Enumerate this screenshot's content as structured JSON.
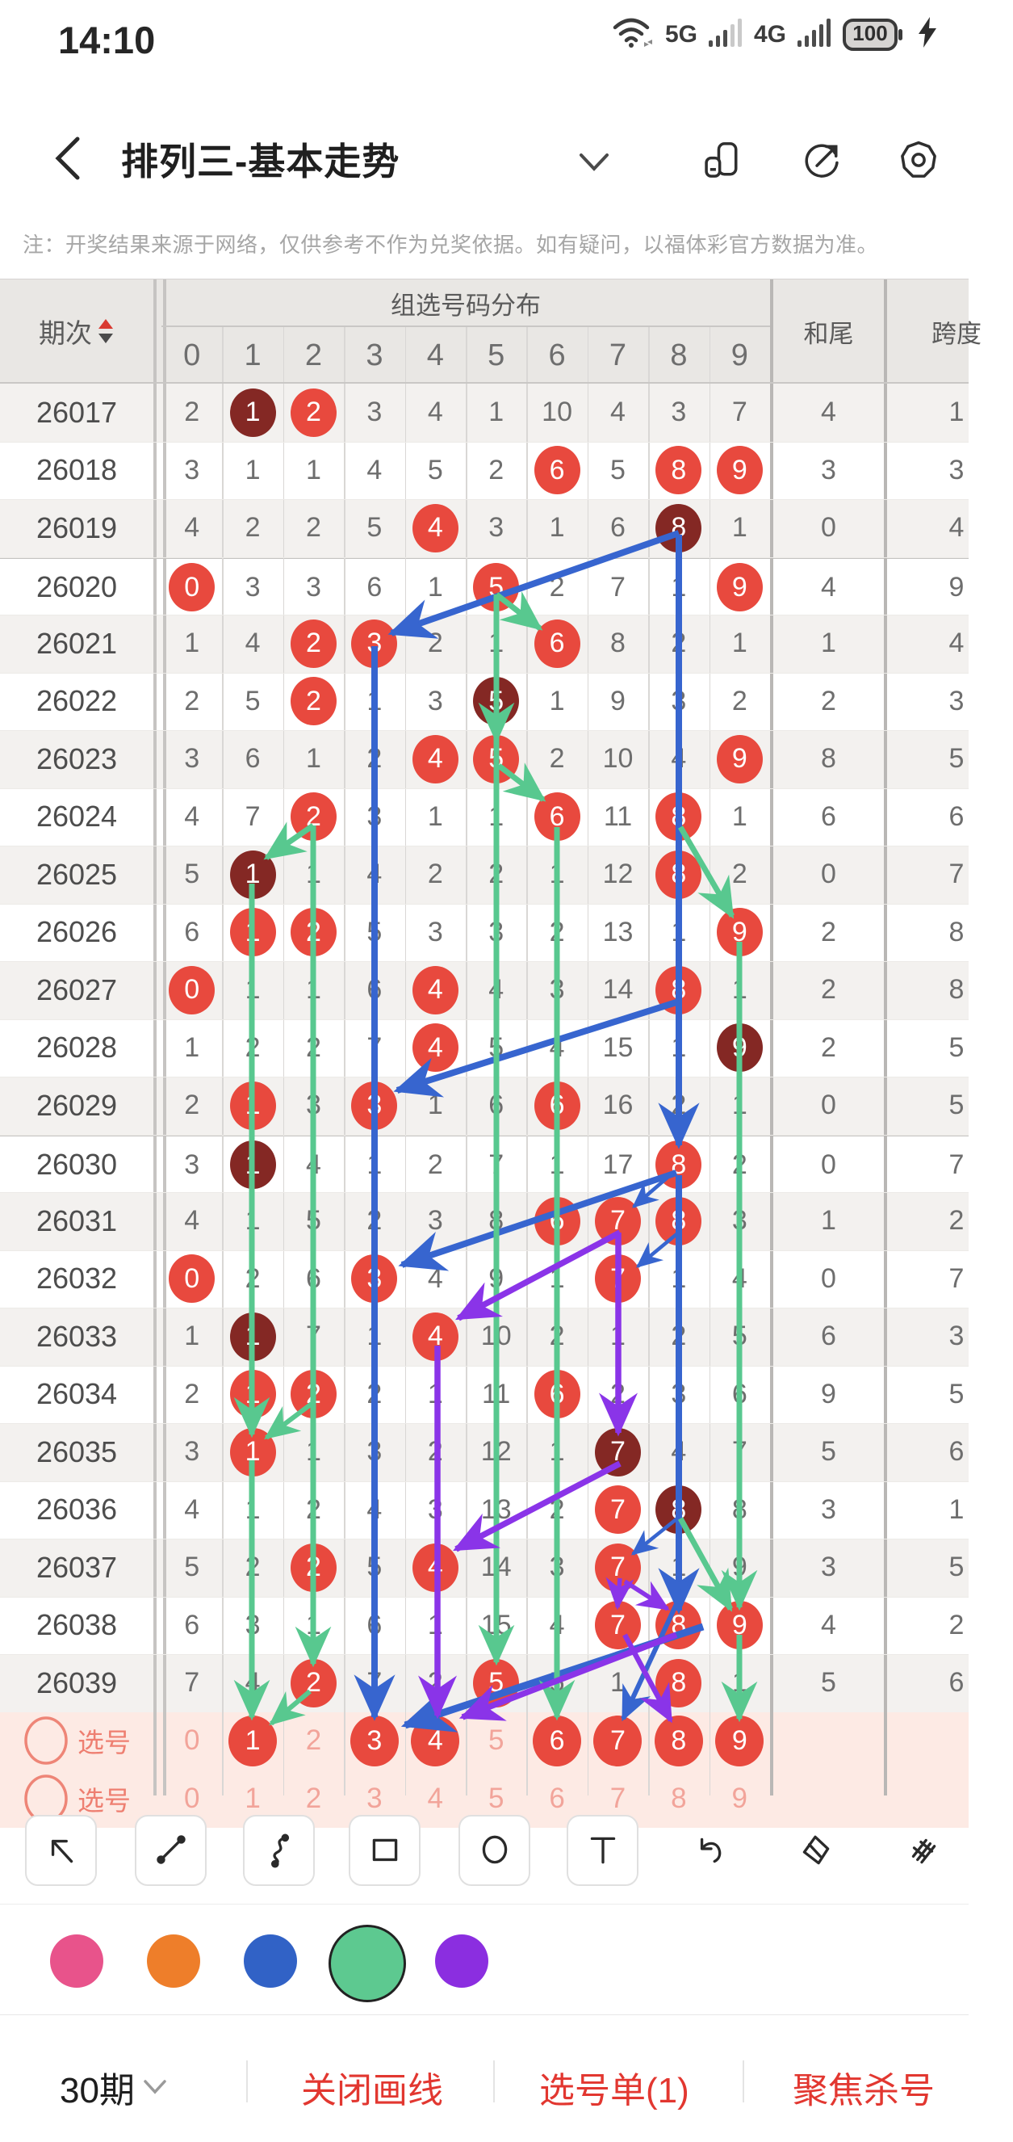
{
  "status_bar": {
    "time": "14:10",
    "net1": "5G",
    "net2": "4G",
    "battery": "100",
    "icons": [
      "wifi-icon",
      "signal-bars-icon",
      "signal-bars-icon",
      "battery-icon",
      "charging-bolt-icon"
    ]
  },
  "header": {
    "title": "排列三-基本走势",
    "icons": [
      "back-icon",
      "chevron-down-icon",
      "pages-icon",
      "share-icon",
      "badge-icon"
    ]
  },
  "notice": "注：开奖结果来源于网络，仅供参考不作为兑奖依据。如有疑问，以福体彩官方数据为准。",
  "table": {
    "period_header": "期次",
    "group_header": "组选号码分布",
    "sum_tail_header": "和尾",
    "span_header": "跨度",
    "digit_headers": [
      "0",
      "1",
      "2",
      "3",
      "4",
      "5",
      "6",
      "7",
      "8",
      "9"
    ],
    "rows": [
      {
        "period": "26017",
        "values": [
          "2",
          "1",
          "2",
          "3",
          "4",
          "1",
          "10",
          "4",
          "3",
          "7"
        ],
        "red": [
          2
        ],
        "dark": [
          1
        ],
        "sum_tail": "4",
        "span": "1"
      },
      {
        "period": "26018",
        "values": [
          "3",
          "1",
          "1",
          "4",
          "5",
          "2",
          "6",
          "5",
          "8",
          "9"
        ],
        "red": [
          6,
          8,
          9
        ],
        "dark": [],
        "sum_tail": "3",
        "span": "3"
      },
      {
        "period": "26019",
        "values": [
          "4",
          "2",
          "2",
          "5",
          "4",
          "3",
          "1",
          "6",
          "8",
          "1"
        ],
        "red": [
          4
        ],
        "dark": [
          8
        ],
        "sum_tail": "0",
        "span": "4"
      },
      {
        "period": "26020",
        "values": [
          "0",
          "3",
          "3",
          "6",
          "1",
          "5",
          "2",
          "7",
          "1",
          "9"
        ],
        "red": [
          0,
          5,
          9
        ],
        "dark": [],
        "sum_tail": "4",
        "span": "9"
      },
      {
        "period": "26021",
        "values": [
          "1",
          "4",
          "2",
          "3",
          "2",
          "1",
          "6",
          "8",
          "2",
          "1"
        ],
        "red": [
          2,
          3,
          6
        ],
        "dark": [],
        "sum_tail": "1",
        "span": "4"
      },
      {
        "period": "26022",
        "values": [
          "2",
          "5",
          "2",
          "1",
          "3",
          "5",
          "1",
          "9",
          "3",
          "2"
        ],
        "red": [
          2
        ],
        "dark": [
          5
        ],
        "sum_tail": "2",
        "span": "3"
      },
      {
        "period": "26023",
        "values": [
          "3",
          "6",
          "1",
          "2",
          "4",
          "5",
          "2",
          "10",
          "4",
          "9"
        ],
        "red": [
          4,
          5,
          9
        ],
        "dark": [],
        "sum_tail": "8",
        "span": "5"
      },
      {
        "period": "26024",
        "values": [
          "4",
          "7",
          "2",
          "3",
          "1",
          "1",
          "6",
          "11",
          "8",
          "1"
        ],
        "red": [
          2,
          6,
          8
        ],
        "dark": [],
        "sum_tail": "6",
        "span": "6"
      },
      {
        "period": "26025",
        "values": [
          "5",
          "1",
          "1",
          "4",
          "2",
          "2",
          "1",
          "12",
          "8",
          "2"
        ],
        "red": [
          8
        ],
        "dark": [
          1
        ],
        "sum_tail": "0",
        "span": "7"
      },
      {
        "period": "26026",
        "values": [
          "6",
          "1",
          "2",
          "5",
          "3",
          "3",
          "2",
          "13",
          "1",
          "9"
        ],
        "red": [
          1,
          2,
          9
        ],
        "dark": [],
        "sum_tail": "2",
        "span": "8"
      },
      {
        "period": "26027",
        "values": [
          "0",
          "1",
          "1",
          "6",
          "4",
          "4",
          "3",
          "14",
          "8",
          "1"
        ],
        "red": [
          0,
          4,
          8
        ],
        "dark": [],
        "sum_tail": "2",
        "span": "8"
      },
      {
        "period": "26028",
        "values": [
          "1",
          "2",
          "2",
          "7",
          "4",
          "5",
          "4",
          "15",
          "1",
          "9"
        ],
        "red": [
          4
        ],
        "dark": [
          9
        ],
        "sum_tail": "2",
        "span": "5"
      },
      {
        "period": "26029",
        "values": [
          "2",
          "1",
          "3",
          "3",
          "1",
          "6",
          "6",
          "16",
          "2",
          "1"
        ],
        "red": [
          1,
          3,
          6
        ],
        "dark": [],
        "sum_tail": "0",
        "span": "5"
      },
      {
        "period": "26030",
        "values": [
          "3",
          "1",
          "4",
          "1",
          "2",
          "7",
          "1",
          "17",
          "8",
          "2"
        ],
        "red": [
          8
        ],
        "dark": [
          1
        ],
        "sum_tail": "0",
        "span": "7"
      },
      {
        "period": "26031",
        "values": [
          "4",
          "1",
          "5",
          "2",
          "3",
          "8",
          "6",
          "7",
          "8",
          "3"
        ],
        "red": [
          6,
          7,
          8
        ],
        "dark": [],
        "sum_tail": "1",
        "span": "2"
      },
      {
        "period": "26032",
        "values": [
          "0",
          "2",
          "6",
          "3",
          "4",
          "9",
          "1",
          "7",
          "1",
          "4"
        ],
        "red": [
          0,
          3,
          7
        ],
        "dark": [],
        "sum_tail": "0",
        "span": "7"
      },
      {
        "period": "26033",
        "values": [
          "1",
          "1",
          "7",
          "1",
          "4",
          "10",
          "2",
          "1",
          "2",
          "5"
        ],
        "red": [
          4
        ],
        "dark": [
          1
        ],
        "sum_tail": "6",
        "span": "3"
      },
      {
        "period": "26034",
        "values": [
          "2",
          "1",
          "2",
          "2",
          "1",
          "11",
          "6",
          "2",
          "3",
          "6"
        ],
        "red": [
          1,
          2,
          6
        ],
        "dark": [],
        "sum_tail": "9",
        "span": "5"
      },
      {
        "period": "26035",
        "values": [
          "3",
          "1",
          "1",
          "3",
          "2",
          "12",
          "1",
          "7",
          "4",
          "7"
        ],
        "red": [
          1
        ],
        "dark": [
          7
        ],
        "sum_tail": "5",
        "span": "6"
      },
      {
        "period": "26036",
        "values": [
          "4",
          "1",
          "2",
          "4",
          "3",
          "13",
          "2",
          "7",
          "8",
          "8"
        ],
        "red": [
          7
        ],
        "dark": [
          8
        ],
        "sum_tail": "3",
        "span": "1"
      },
      {
        "period": "26037",
        "values": [
          "5",
          "2",
          "2",
          "5",
          "4",
          "14",
          "3",
          "7",
          "1",
          "9"
        ],
        "red": [
          2,
          4,
          7
        ],
        "dark": [],
        "sum_tail": "3",
        "span": "5"
      },
      {
        "period": "26038",
        "values": [
          "6",
          "3",
          "1",
          "6",
          "1",
          "15",
          "4",
          "7",
          "8",
          "9"
        ],
        "red": [
          7,
          8,
          9
        ],
        "dark": [],
        "sum_tail": "4",
        "span": "2"
      },
      {
        "period": "26039",
        "values": [
          "7",
          "4",
          "2",
          "7",
          "2",
          "5",
          "5",
          "1",
          "8",
          "1"
        ],
        "red": [
          2,
          5,
          8
        ],
        "dark": [],
        "sum_tail": "5",
        "span": "6"
      }
    ],
    "pick_rows": [
      {
        "label": "选号",
        "digits": [
          "0",
          "1",
          "2",
          "3",
          "4",
          "5",
          "6",
          "7",
          "8",
          "9"
        ],
        "selected": [
          1,
          3,
          4,
          6,
          7,
          8,
          9
        ]
      },
      {
        "label": "选号",
        "digits": [
          "0",
          "1",
          "2",
          "3",
          "4",
          "5",
          "6",
          "7",
          "8",
          "9"
        ],
        "selected": []
      }
    ]
  },
  "drawing": {
    "colors": {
      "blue": "#3765cf",
      "green": "#58c88f",
      "purple": "#8a34e8"
    },
    "strokes": [
      {
        "color": "blue",
        "w": 8,
        "points": [
          [
            841,
            660
          ],
          [
            485,
            784
          ]
        ]
      },
      {
        "color": "blue",
        "w": 8,
        "points": [
          [
            464,
            800
          ],
          [
            464,
            2126
          ]
        ]
      },
      {
        "color": "blue",
        "w": 8,
        "points": [
          [
            841,
            662
          ],
          [
            841,
            1418
          ]
        ]
      },
      {
        "color": "blue",
        "w": 8,
        "points": [
          [
            841,
            1240
          ],
          [
            492,
            1350
          ]
        ]
      },
      {
        "color": "blue",
        "w": 8,
        "points": [
          [
            838,
            1452
          ],
          [
            498,
            1566
          ]
        ]
      },
      {
        "color": "blue",
        "w": 4.5,
        "points": [
          [
            836,
            1450
          ],
          [
            785,
            1494
          ]
        ]
      },
      {
        "color": "blue",
        "w": 4.5,
        "points": [
          [
            843,
            1524
          ],
          [
            790,
            1568
          ]
        ]
      },
      {
        "color": "blue",
        "w": 4.5,
        "points": [
          [
            839,
            1880
          ],
          [
            784,
            1924
          ]
        ]
      },
      {
        "color": "blue",
        "w": 8,
        "points": [
          [
            841,
            1455
          ],
          [
            841,
            1994
          ]
        ]
      },
      {
        "color": "blue",
        "w": 9,
        "points": [
          [
            871,
            2014
          ],
          [
            502,
            2136
          ]
        ]
      },
      {
        "color": "blue",
        "w": 6,
        "points": [
          [
            851,
            1958
          ],
          [
            772,
            2128
          ]
        ]
      },
      {
        "color": "green",
        "w": 7,
        "points": [
          [
            388,
            1022
          ],
          [
            330,
            1062
          ]
        ]
      },
      {
        "color": "green",
        "w": 7,
        "points": [
          [
            312,
            1094
          ],
          [
            312,
            1776
          ]
        ]
      },
      {
        "color": "green",
        "w": 7,
        "points": [
          [
            312,
            1808
          ],
          [
            312,
            2126
          ]
        ]
      },
      {
        "color": "green",
        "w": 7,
        "points": [
          [
            388,
            1022
          ],
          [
            388,
            2060
          ]
        ]
      },
      {
        "color": "green",
        "w": 6,
        "points": [
          [
            384,
            2094
          ],
          [
            336,
            2134
          ]
        ]
      },
      {
        "color": "green",
        "w": 7,
        "points": [
          [
            615,
            736
          ],
          [
            669,
            778
          ]
        ]
      },
      {
        "color": "green",
        "w": 7,
        "points": [
          [
            615,
            736
          ],
          [
            615,
            916
          ]
        ]
      },
      {
        "color": "green",
        "w": 7,
        "points": [
          [
            618,
            948
          ],
          [
            673,
            990
          ]
        ]
      },
      {
        "color": "green",
        "w": 7,
        "points": [
          [
            615,
            736
          ],
          [
            615,
            2058
          ]
        ]
      },
      {
        "color": "green",
        "w": 7,
        "points": [
          [
            690,
            1024
          ],
          [
            690,
            2126
          ]
        ]
      },
      {
        "color": "green",
        "w": 7,
        "points": [
          [
            843,
            1024
          ],
          [
            907,
            1134
          ]
        ]
      },
      {
        "color": "green",
        "w": 7,
        "points": [
          [
            916,
            1166
          ],
          [
            916,
            1990
          ]
        ]
      },
      {
        "color": "green",
        "w": 7,
        "points": [
          [
            843,
            1880
          ],
          [
            905,
            1992
          ]
        ]
      },
      {
        "color": "green",
        "w": 7,
        "points": [
          [
            916,
            2024
          ],
          [
            916,
            2128
          ]
        ]
      },
      {
        "color": "green",
        "w": 6,
        "points": [
          [
            386,
            1738
          ],
          [
            330,
            1780
          ]
        ]
      },
      {
        "color": "purple",
        "w": 7.5,
        "points": [
          [
            768,
            1526
          ],
          [
            568,
            1632
          ]
        ]
      },
      {
        "color": "purple",
        "w": 7.5,
        "points": [
          [
            542,
            1666
          ],
          [
            542,
            2124
          ]
        ]
      },
      {
        "color": "purple",
        "w": 7.5,
        "points": [
          [
            766,
            1526
          ],
          [
            766,
            1774
          ]
        ]
      },
      {
        "color": "purple",
        "w": 7.5,
        "points": [
          [
            768,
            1812
          ],
          [
            565,
            1918
          ]
        ]
      },
      {
        "color": "purple",
        "w": 5.5,
        "points": [
          [
            768,
            1954
          ],
          [
            765,
            1990
          ]
        ]
      },
      {
        "color": "purple",
        "w": 7.5,
        "points": [
          [
            838,
            2024
          ],
          [
            573,
            2126
          ]
        ]
      },
      {
        "color": "purple",
        "w": 6.5,
        "points": [
          [
            774,
            2024
          ],
          [
            831,
            2130
          ]
        ]
      },
      {
        "color": "purple",
        "w": 5.5,
        "points": [
          [
            774,
            1958
          ],
          [
            827,
            1992
          ]
        ]
      }
    ]
  },
  "toolbar": {
    "tools": [
      "select-arrow",
      "line",
      "curve",
      "rectangle",
      "circle",
      "text",
      "undo",
      "eraser",
      "clear-all"
    ]
  },
  "palette": {
    "colors": [
      {
        "name": "pink",
        "hex": "#e8538b",
        "selected": false
      },
      {
        "name": "orange",
        "hex": "#ee7e2a",
        "selected": false
      },
      {
        "name": "blue",
        "hex": "#3162c6",
        "selected": false
      },
      {
        "name": "green",
        "hex": "#5dc990",
        "selected": true
      },
      {
        "name": "purple",
        "hex": "#8b2ee0",
        "selected": false
      }
    ]
  },
  "bottom_bar": {
    "periods": "30期",
    "items": [
      "关闭画线",
      "选号单(1)",
      "聚焦杀号"
    ]
  }
}
